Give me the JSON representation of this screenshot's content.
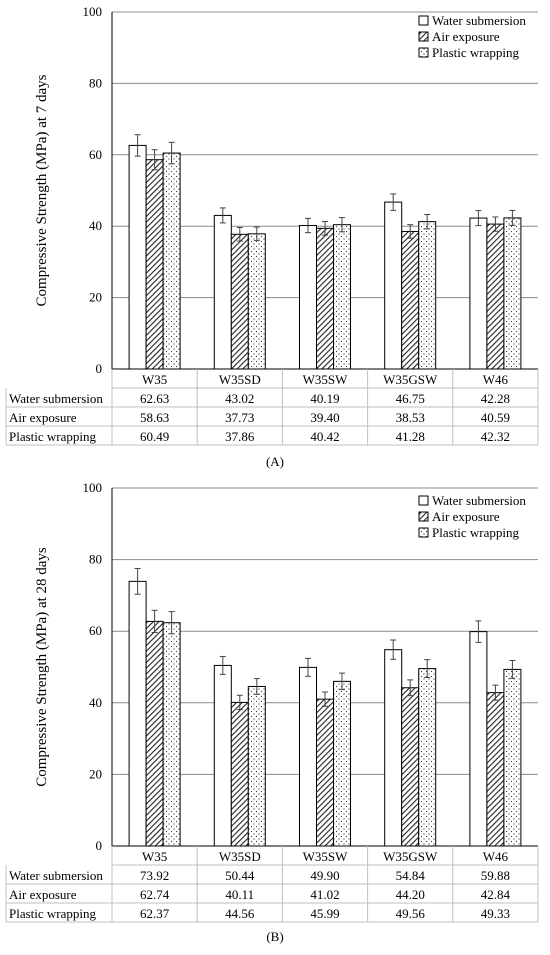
{
  "chart_data": [
    {
      "type": "bar",
      "panel_label": "A",
      "ylabel": "Compressive Strength (MPa) at 7 days",
      "ylim": [
        0,
        100
      ],
      "yticks": [
        0,
        20,
        40,
        60,
        80,
        100
      ],
      "grid": true,
      "legend_position": "top-right",
      "categories": [
        "W35",
        "W35SD",
        "W35SW",
        "W35GSW",
        "W46"
      ],
      "series": [
        {
          "name": "Water submersion",
          "fill": "plain",
          "values": [
            62.63,
            43.02,
            40.19,
            46.75,
            42.28
          ],
          "errors": [
            3.0,
            2.1,
            2.0,
            2.3,
            2.1
          ]
        },
        {
          "name": "Air exposure",
          "fill": "hatch",
          "values": [
            58.63,
            37.73,
            39.4,
            38.53,
            40.59
          ],
          "errors": [
            2.8,
            1.9,
            1.9,
            1.9,
            2.0
          ]
        },
        {
          "name": "Plastic wrapping",
          "fill": "dots",
          "values": [
            60.49,
            37.86,
            40.42,
            41.28,
            42.32
          ],
          "errors": [
            3.0,
            1.9,
            2.0,
            2.0,
            2.1
          ]
        }
      ],
      "table": [
        {
          "label": "Water submersion",
          "values": [
            "62.63",
            "43.02",
            "40.19",
            "46.75",
            "42.28"
          ]
        },
        {
          "label": "Air exposure",
          "values": [
            "58.63",
            "37.73",
            "39.40",
            "38.53",
            "40.59"
          ]
        },
        {
          "label": "Plastic wrapping",
          "values": [
            "60.49",
            "37.86",
            "40.42",
            "41.28",
            "42.32"
          ]
        }
      ]
    },
    {
      "type": "bar",
      "panel_label": "B",
      "ylabel": "Compressive Strength (MPa) at 28 days",
      "ylim": [
        0,
        100
      ],
      "yticks": [
        0,
        20,
        40,
        60,
        80,
        100
      ],
      "grid": true,
      "legend_position": "top-right",
      "categories": [
        "W35",
        "W35SD",
        "W35SW",
        "W35GSW",
        "W46"
      ],
      "series": [
        {
          "name": "Water submersion",
          "fill": "plain",
          "values": [
            73.92,
            50.44,
            49.9,
            54.84,
            59.88
          ],
          "errors": [
            3.6,
            2.5,
            2.5,
            2.7,
            3.0
          ]
        },
        {
          "name": "Air exposure",
          "fill": "hatch",
          "values": [
            62.74,
            40.11,
            41.02,
            44.2,
            42.84
          ],
          "errors": [
            3.1,
            2.0,
            2.0,
            2.2,
            2.1
          ]
        },
        {
          "name": "Plastic wrapping",
          "fill": "dots",
          "values": [
            62.37,
            44.56,
            45.99,
            49.56,
            49.33
          ],
          "errors": [
            3.1,
            2.2,
            2.3,
            2.5,
            2.5
          ]
        }
      ],
      "table": [
        {
          "label": "Water submersion",
          "values": [
            "73.92",
            "50.44",
            "49.90",
            "54.84",
            "59.88"
          ]
        },
        {
          "label": "Air exposure",
          "values": [
            "62.74",
            "40.11",
            "41.02",
            "44.20",
            "42.84"
          ]
        },
        {
          "label": "Plastic wrapping",
          "values": [
            "62.37",
            "44.56",
            "45.99",
            "49.56",
            "49.33"
          ]
        }
      ]
    }
  ],
  "captions": [
    "(A)",
    "(B)"
  ],
  "colors": {
    "bar_fill": "#ffffff",
    "bar_stroke": "#000000",
    "grid": "#8c8c8c",
    "axis": "#000000",
    "table_border": "#bfbfbf"
  }
}
